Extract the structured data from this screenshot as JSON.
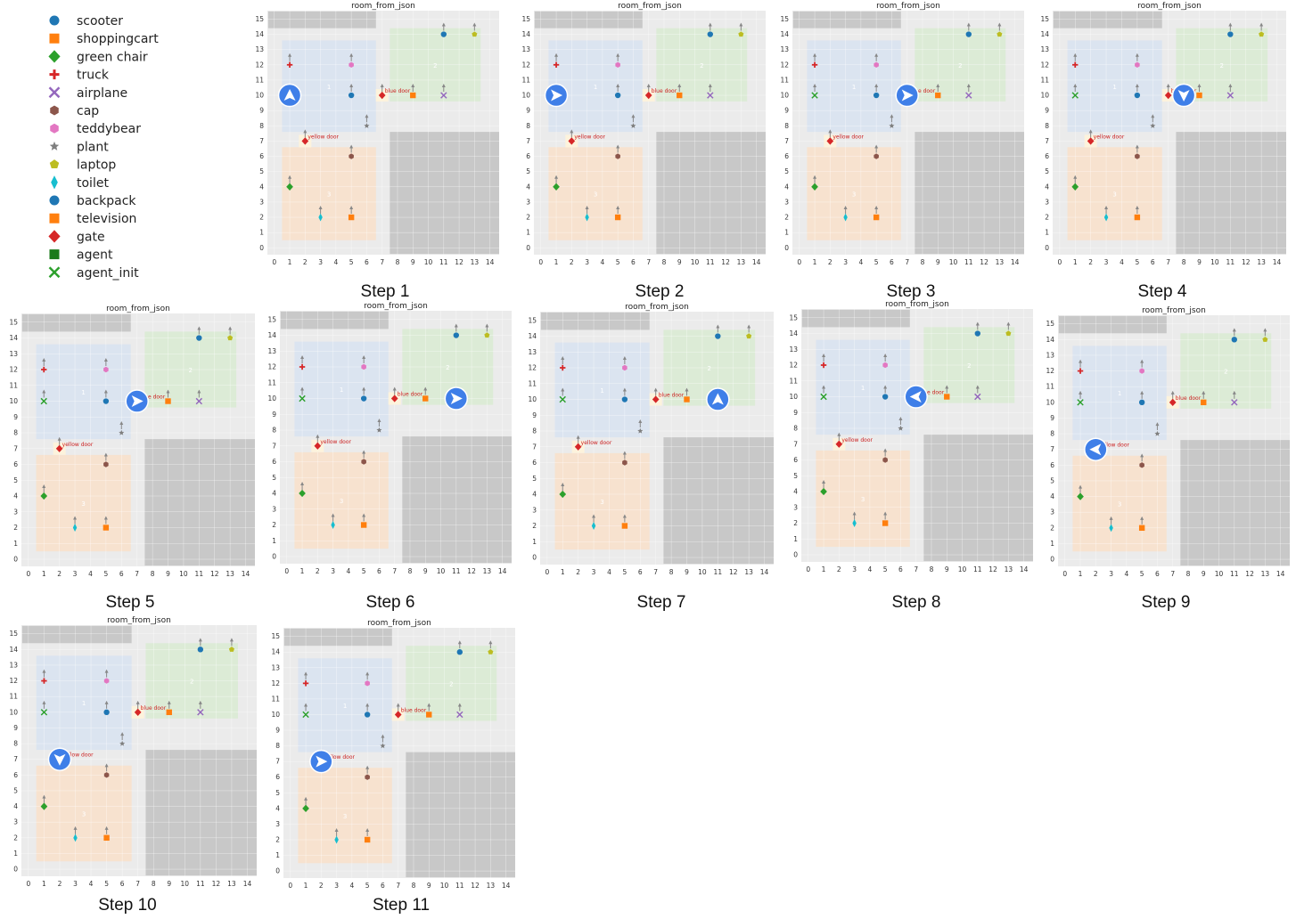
{
  "legend": [
    {
      "name": "scooter",
      "marker": "circle",
      "color": "#1f77b4"
    },
    {
      "name": "shoppingcart",
      "marker": "square",
      "color": "#ff7f0e"
    },
    {
      "name": "green chair",
      "marker": "diamond",
      "color": "#2ca02c"
    },
    {
      "name": "truck",
      "marker": "plus",
      "color": "#d62728"
    },
    {
      "name": "airplane",
      "marker": "x",
      "color": "#9467bd"
    },
    {
      "name": "cap",
      "marker": "hexagon",
      "color": "#8c564b"
    },
    {
      "name": "teddybear",
      "marker": "hexagon",
      "color": "#e377c2"
    },
    {
      "name": "plant",
      "marker": "star",
      "color": "#7f7f7f"
    },
    {
      "name": "laptop",
      "marker": "pentagon",
      "color": "#bcbd22"
    },
    {
      "name": "toilet",
      "marker": "thin-diamond",
      "color": "#17becf"
    },
    {
      "name": "backpack",
      "marker": "circle",
      "color": "#1f77b4"
    },
    {
      "name": "television",
      "marker": "square",
      "color": "#ff7f0e"
    },
    {
      "name": "gate",
      "marker": "diamond",
      "color": "#d62728"
    },
    {
      "name": "agent",
      "marker": "square",
      "color": "#1a7a1a"
    },
    {
      "name": "agent_init",
      "marker": "x",
      "color": "#2ca02c"
    }
  ],
  "plot_title": "room_from_json",
  "chart_data": {
    "type": "scatter",
    "xlim": [
      0,
      14
    ],
    "ylim": [
      0,
      15
    ],
    "x_ticks": [
      0,
      1,
      2,
      3,
      4,
      5,
      6,
      7,
      8,
      9,
      10,
      11,
      12,
      13,
      14
    ],
    "y_ticks": [
      0,
      1,
      2,
      3,
      4,
      5,
      6,
      7,
      8,
      9,
      10,
      11,
      12,
      13,
      14,
      15
    ],
    "grid": true,
    "rooms": [
      {
        "color": "#dbe4f0",
        "x0": 0.5,
        "x1": 6.6,
        "y0": 7.6,
        "y1": 13.6,
        "label": "1"
      },
      {
        "color": "#dcebd6",
        "x0": 7.5,
        "x1": 13.4,
        "y0": 9.6,
        "y1": 14.4,
        "label": "2"
      },
      {
        "color": "#f7e2cf",
        "x0": 0.5,
        "x1": 6.6,
        "y0": 0.5,
        "y1": 6.6,
        "label": "3"
      },
      {
        "color": "#c8c8c8",
        "x0": 7.5,
        "x1": 14.6,
        "y0": -0.4,
        "y1": 7.6,
        "label": ""
      },
      {
        "color": "#c8c8c8",
        "x0": -0.4,
        "x1": 6.6,
        "y0": 14.4,
        "y1": 15.5,
        "label": ""
      }
    ],
    "doors": [
      {
        "name": "blue door",
        "x": 7,
        "y": 10,
        "text": "blue door"
      },
      {
        "name": "yellow door",
        "x": 2,
        "y": 7,
        "text": "yellow door"
      }
    ],
    "objects": [
      {
        "name": "truck",
        "x": 1,
        "y": 12
      },
      {
        "name": "teddybear",
        "x": 5,
        "y": 12
      },
      {
        "name": "agent_init",
        "x": 1,
        "y": 10
      },
      {
        "name": "backpack",
        "x": 5,
        "y": 10
      },
      {
        "name": "plant",
        "x": 6,
        "y": 8
      },
      {
        "name": "scooter",
        "x": 11,
        "y": 14
      },
      {
        "name": "laptop",
        "x": 13,
        "y": 14
      },
      {
        "name": "television",
        "x": 9,
        "y": 10
      },
      {
        "name": "airplane",
        "x": 11,
        "y": 10
      },
      {
        "name": "cap",
        "x": 5,
        "y": 6
      },
      {
        "name": "green chair",
        "x": 1,
        "y": 4
      },
      {
        "name": "toilet",
        "x": 3,
        "y": 2
      },
      {
        "name": "shoppingcart",
        "x": 5,
        "y": 2
      },
      {
        "name": "gate",
        "x": 7,
        "y": 10
      },
      {
        "name": "gate",
        "x": 2,
        "y": 7
      }
    ],
    "steps": [
      {
        "label": "Step 1",
        "agent": {
          "x": 1,
          "y": 10,
          "dir": "up"
        }
      },
      {
        "label": "Step 2",
        "agent": {
          "x": 1,
          "y": 10,
          "dir": "right"
        }
      },
      {
        "label": "Step 3",
        "agent": {
          "x": 7,
          "y": 10,
          "dir": "right"
        }
      },
      {
        "label": "Step 4",
        "agent": {
          "x": 8,
          "y": 10,
          "dir": "down"
        }
      },
      {
        "label": "Step 5",
        "agent": {
          "x": 7,
          "y": 10,
          "dir": "right"
        }
      },
      {
        "label": "Step 6",
        "agent": {
          "x": 11,
          "y": 10,
          "dir": "right"
        }
      },
      {
        "label": "Step 7",
        "agent": {
          "x": 11,
          "y": 10,
          "dir": "up"
        }
      },
      {
        "label": "Step 8",
        "agent": {
          "x": 7,
          "y": 10,
          "dir": "left"
        }
      },
      {
        "label": "Step 9",
        "agent": {
          "x": 2,
          "y": 7,
          "dir": "left"
        }
      },
      {
        "label": "Step 10",
        "agent": {
          "x": 2,
          "y": 7,
          "dir": "down"
        }
      },
      {
        "label": "Step 11",
        "agent": {
          "x": 2,
          "y": 7,
          "dir": "right"
        }
      }
    ]
  }
}
